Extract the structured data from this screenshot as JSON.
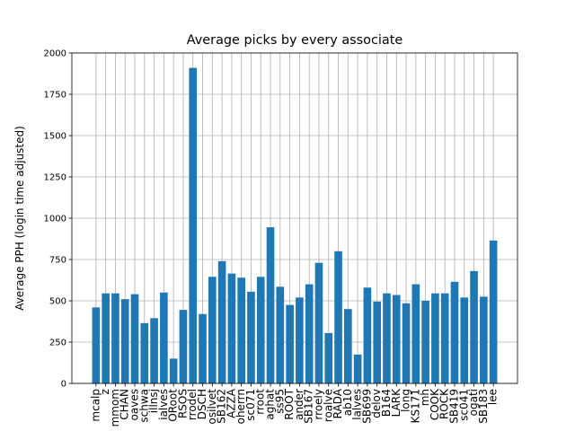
{
  "chart_data": {
    "type": "bar",
    "title": "Average picks by every associate",
    "ylabel": "Average PPH (login time adjusted)",
    "categories": [
      "mcalp",
      "z",
      "mmom",
      "CHAN",
      "oaves",
      "schwa",
      "illnsj",
      "ialves",
      "ORoot",
      "RSOS",
      "rrodel",
      "DSCH",
      "osilvet",
      "SB162",
      "AZZA",
      "oherrn",
      "sc071",
      "rroot",
      "aghat",
      "ss95",
      "ROOT",
      "ander",
      "SB167",
      "rroely",
      "roalve",
      "RADA",
      "ab10",
      "lalves",
      "SB699",
      "delov",
      "B164",
      "LARK",
      "long",
      "KS171",
      "mh",
      "COOK",
      "ROCK",
      "SB419",
      "sc041",
      "ogati",
      "SB183",
      "lee"
    ],
    "values": [
      460,
      545,
      545,
      510,
      540,
      365,
      395,
      550,
      150,
      445,
      1910,
      420,
      645,
      740,
      665,
      640,
      555,
      645,
      945,
      585,
      475,
      520,
      600,
      730,
      305,
      800,
      450,
      175,
      580,
      495,
      545,
      535,
      485,
      600,
      500,
      545,
      545,
      615,
      520,
      680,
      525,
      865
    ],
    "color": "#1f77b4",
    "ylim": [
      0,
      2000
    ],
    "yticks": [
      0,
      250,
      500,
      750,
      1000,
      1250,
      1500,
      1750,
      2000
    ],
    "grid": true
  }
}
